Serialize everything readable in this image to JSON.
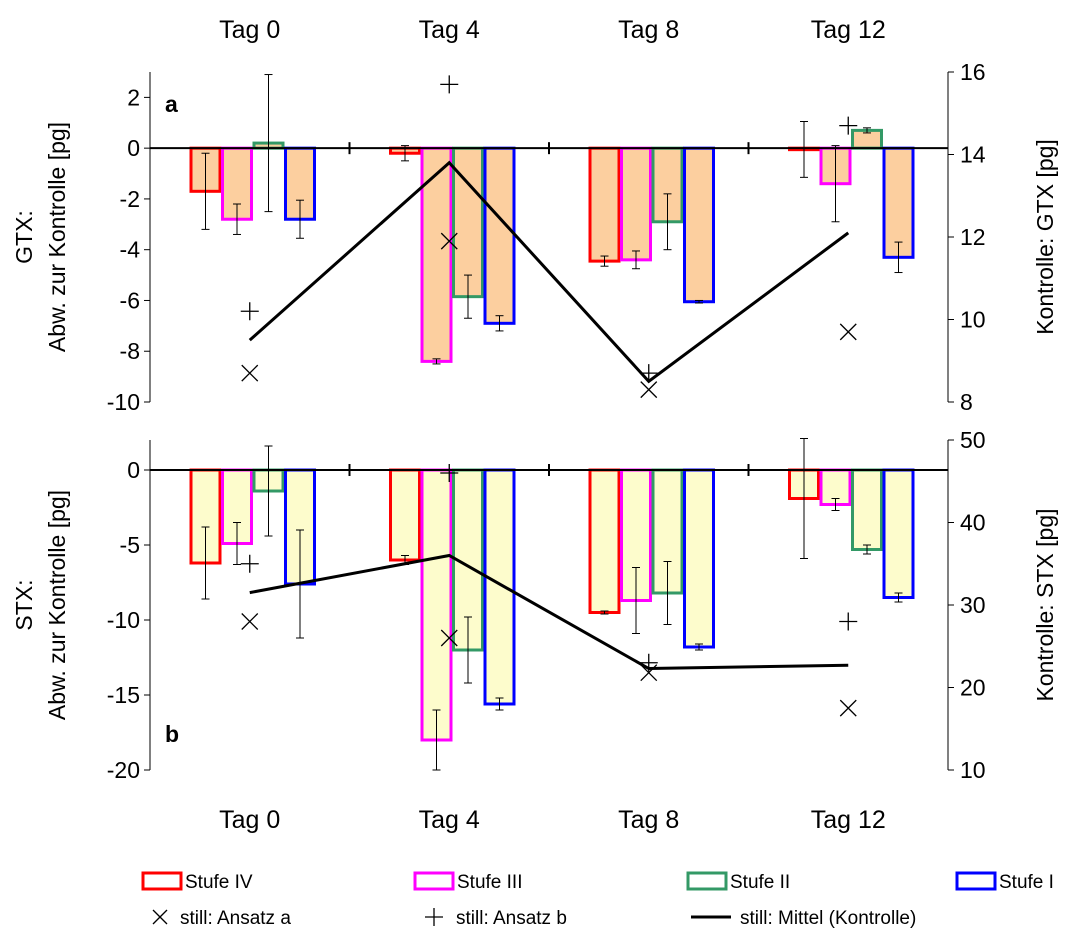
{
  "chart_data": [
    {
      "id": "a",
      "type": "bar",
      "panel_label": "a",
      "categories": [
        "Tag 0",
        "Tag 4",
        "Tag 8",
        "Tag 12"
      ],
      "ylabel_line1": "GTX:",
      "ylabel_line2": "Abw. zur Kontrolle [pg]",
      "y2label": "Kontrolle: GTX [pg]",
      "ylim": [
        -10,
        3
      ],
      "yticks": [
        2,
        0,
        -2,
        -4,
        -6,
        -8,
        -10
      ],
      "y2lim": [
        8,
        16
      ],
      "y2ticks": [
        16,
        14,
        12,
        10,
        8
      ],
      "fill_color": "#fccf9f",
      "series": [
        {
          "name": "Stufe IV",
          "color": "#ff0000",
          "values": [
            -1.7,
            -0.2,
            -4.45,
            -0.05
          ],
          "err": [
            1.5,
            0.3,
            0.2,
            1.1
          ]
        },
        {
          "name": "Stufe III",
          "color": "#ff00ff",
          "values": [
            -2.8,
            -8.4,
            -4.4,
            -1.4
          ],
          "err": [
            0.6,
            0.1,
            0.35,
            1.5
          ]
        },
        {
          "name": "Stufe II",
          "color": "#339966",
          "values": [
            0.2,
            -5.85,
            -2.9,
            0.7
          ],
          "err": [
            2.7,
            0.85,
            1.1,
            0.1
          ]
        },
        {
          "name": "Stufe I",
          "color": "#0000ff",
          "values": [
            -2.8,
            -6.9,
            -6.05,
            -4.3
          ],
          "err": [
            0.75,
            0.3,
            0.05,
            0.6
          ]
        }
      ],
      "control_mean": [
        9.5,
        13.8,
        8.5,
        12.1
      ],
      "ansatz_a": [
        8.7,
        11.9,
        8.3,
        9.7
      ],
      "ansatz_b": [
        10.2,
        15.7,
        8.7,
        14.7
      ]
    },
    {
      "id": "b",
      "type": "bar",
      "panel_label": "b",
      "categories": [
        "Tag 0",
        "Tag 4",
        "Tag 8",
        "Tag 12"
      ],
      "ylabel_line1": "STX:",
      "ylabel_line2": "Abw. zur Kontrolle [pg]",
      "y2label": "Kontrolle: STX [pg]",
      "ylim": [
        -20,
        2
      ],
      "yticks": [
        0,
        -5,
        -10,
        -15,
        -20
      ],
      "y2lim": [
        10,
        50
      ],
      "y2ticks": [
        50,
        40,
        30,
        20,
        10
      ],
      "fill_color": "#fdfccc",
      "series": [
        {
          "name": "Stufe IV",
          "color": "#ff0000",
          "values": [
            -6.2,
            -6.0,
            -9.5,
            -1.9
          ],
          "err": [
            2.4,
            0.3,
            0.1,
            4.0
          ]
        },
        {
          "name": "Stufe III",
          "color": "#ff00ff",
          "values": [
            -4.9,
            -18.0,
            -8.7,
            -2.3
          ],
          "err": [
            1.4,
            2.0,
            2.2,
            0.4
          ]
        },
        {
          "name": "Stufe II",
          "color": "#339966",
          "values": [
            -1.4,
            -12.0,
            -8.2,
            -5.3
          ],
          "err": [
            3.0,
            2.2,
            2.1,
            0.3
          ]
        },
        {
          "name": "Stufe I",
          "color": "#0000ff",
          "values": [
            -7.6,
            -15.6,
            -11.8,
            -8.5
          ],
          "err": [
            3.6,
            0.4,
            0.2,
            0.3
          ]
        }
      ],
      "control_mean": [
        31.5,
        36.0,
        22.3,
        22.7
      ],
      "ansatz_a": [
        28.0,
        26.0,
        21.8,
        17.5
      ],
      "ansatz_b": [
        35.0,
        46.0,
        23.0,
        28.0
      ]
    }
  ],
  "legend": {
    "stufe_iv": "Stufe IV",
    "stufe_iii": "Stufe III",
    "stufe_ii": "Stufe II",
    "stufe_i": "Stufe I",
    "ansatz_a": "still: Ansatz a",
    "ansatz_b": "still: Ansatz b",
    "mittel": "still: Mittel (Kontrolle)"
  }
}
